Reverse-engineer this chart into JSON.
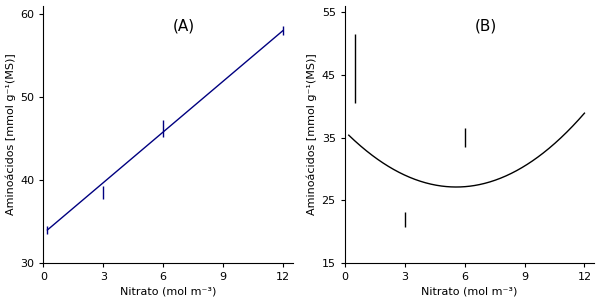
{
  "panel_A": {
    "label": "(A)",
    "data_x": [
      0.2,
      3,
      6,
      12
    ],
    "data_y": [
      34.0,
      38.5,
      46.2,
      58.0
    ],
    "error_y": [
      0.5,
      0.8,
      1.0,
      0.5
    ],
    "fit_x": [
      0.2,
      12
    ],
    "fit_y": [
      34.0,
      58.0
    ],
    "xlim": [
      0,
      12.5
    ],
    "ylim": [
      30,
      61
    ],
    "xticks": [
      0,
      3,
      6,
      9,
      12
    ],
    "yticks": [
      30,
      40,
      50,
      60
    ],
    "xlabel": "Nitrato (mol m⁻³)",
    "ylabel": "Aminoácidos [mmol g⁻¹(MS)]",
    "line_color": "#000080",
    "marker_color": "#000080",
    "fit_color": "#000080"
  },
  "panel_B": {
    "label": "(B)",
    "data_x": [
      0.5,
      3,
      6
    ],
    "data_y": [
      46.0,
      22.0,
      35.0
    ],
    "error_y": [
      5.5,
      1.2,
      1.5
    ],
    "quad_coeffs": [
      0.285,
      -3.18,
      36.0
    ],
    "curve_xmin": 0.2,
    "curve_xmax": 12.0,
    "xlim": [
      0,
      12.5
    ],
    "ylim": [
      15,
      56
    ],
    "xticks": [
      0,
      3,
      6,
      9,
      12
    ],
    "yticks": [
      15,
      25,
      35,
      45,
      55
    ],
    "xlabel": "Nitrato (mol m⁻³)",
    "ylabel": "Aminoácidos [mmol g⁻¹(MS)]",
    "fit_color": "#000000"
  },
  "fig_background": "#ffffff"
}
